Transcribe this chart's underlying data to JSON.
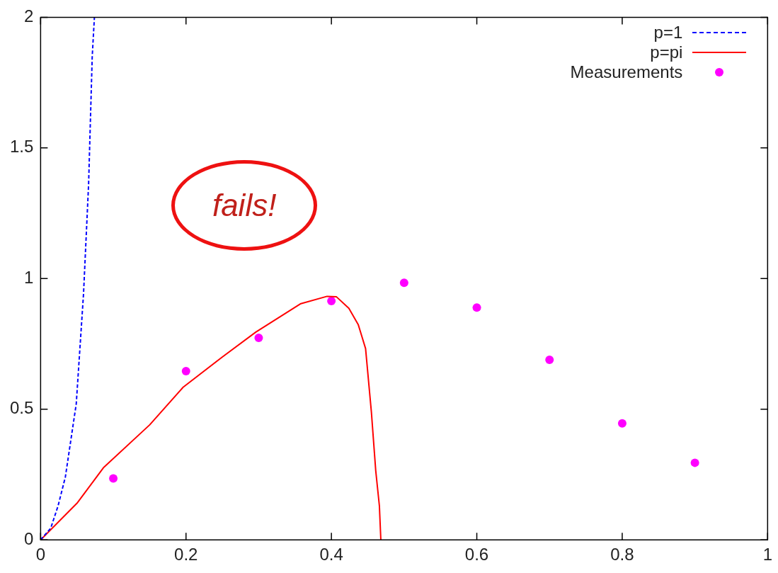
{
  "chart_data": {
    "type": "line",
    "xlim": [
      0,
      1
    ],
    "ylim": [
      0,
      2
    ],
    "xticks": [
      0,
      0.2,
      0.4,
      0.6,
      0.8,
      1
    ],
    "yticks": [
      0,
      0.5,
      1,
      1.5,
      2
    ],
    "grid": false,
    "legend": "top right",
    "annotations": [
      "fails!"
    ],
    "series": [
      {
        "name": "p=1",
        "type": "line",
        "color": "#0000ff",
        "line_style": "dashed",
        "marker": "none",
        "x": [
          0,
          0.014,
          0.024,
          0.034,
          0.049,
          0.059,
          0.066,
          0.071,
          0.074
        ],
        "values": [
          0,
          0.045,
          0.13,
          0.24,
          0.52,
          0.94,
          1.36,
          1.85,
          2.0
        ]
      },
      {
        "name": "p=pi",
        "type": "line",
        "color": "#ff0000",
        "line_style": "solid",
        "marker": "none",
        "x": [
          0,
          0.05,
          0.087,
          0.15,
          0.196,
          0.25,
          0.296,
          0.358,
          0.394,
          0.407,
          0.424,
          0.437,
          0.447,
          0.455,
          0.461,
          0.466,
          0.468
        ],
        "values": [
          0,
          0.14,
          0.278,
          0.44,
          0.584,
          0.7,
          0.795,
          0.904,
          0.932,
          0.93,
          0.886,
          0.823,
          0.732,
          0.489,
          0.264,
          0.13,
          0
        ]
      },
      {
        "name": "Measurements",
        "type": "scatter",
        "color": "#ff00ff",
        "marker": "circle",
        "x": [
          0.1,
          0.2,
          0.3,
          0.4,
          0.5,
          0.6,
          0.7,
          0.8,
          0.9
        ],
        "values": [
          0.235,
          0.646,
          0.773,
          0.914,
          0.984,
          0.889,
          0.689,
          0.446,
          0.295
        ]
      }
    ]
  }
}
